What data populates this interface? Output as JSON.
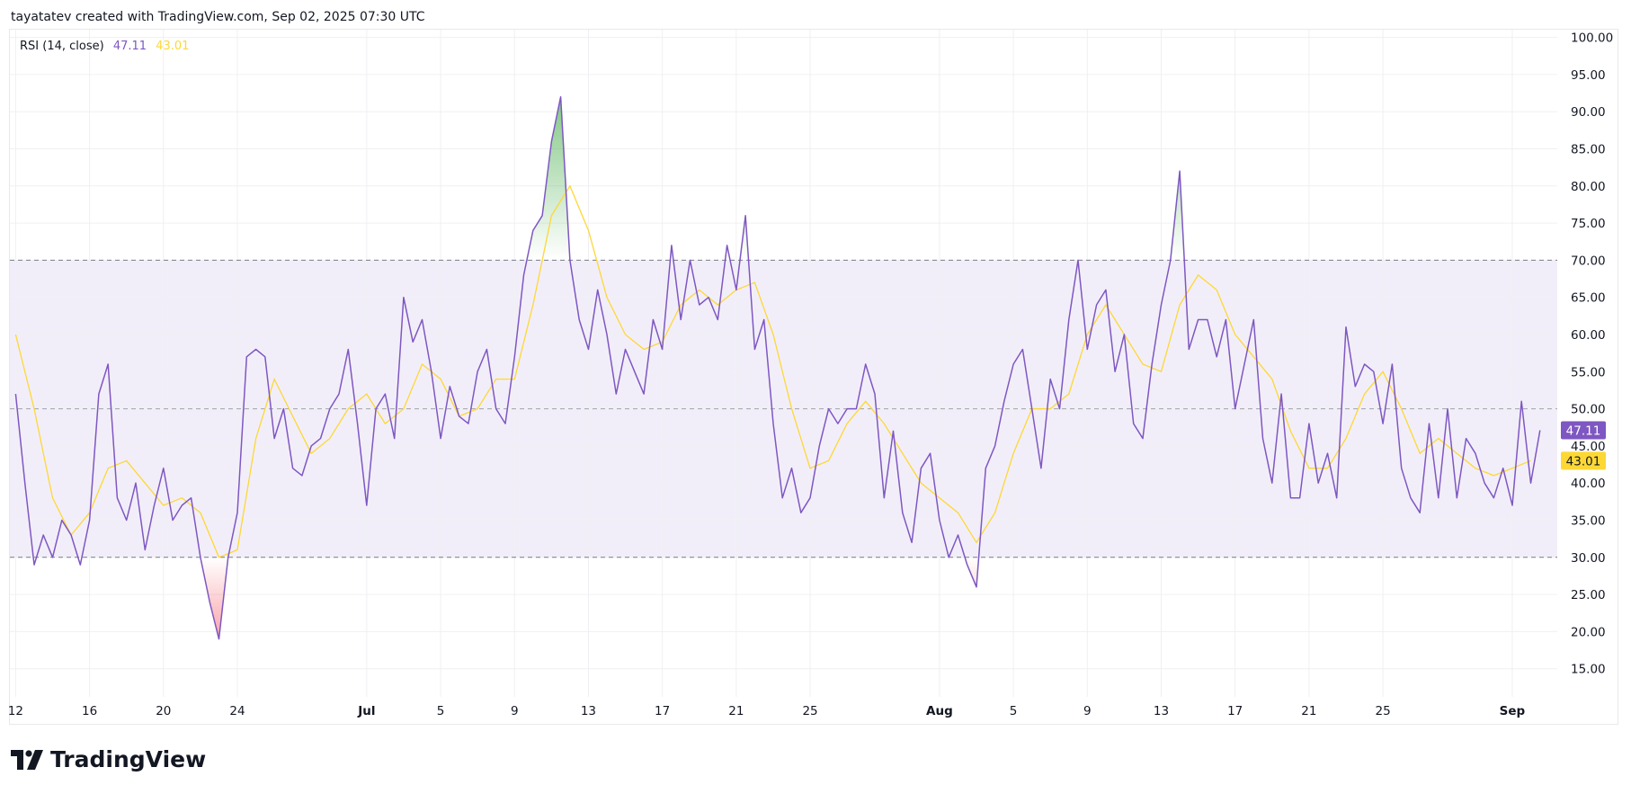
{
  "header": {
    "attribution": "tayatatev created with TradingView.com, Sep 02, 2025 07:30 UTC"
  },
  "legend": {
    "indicator": "RSI (14, close)",
    "rsi_value": "47.11",
    "ma_value": "43.01"
  },
  "logo": {
    "text": "TradingView"
  },
  "colors": {
    "rsi": "#7e57c2",
    "ma": "#fdd835",
    "band": "#7e57c2",
    "overbought_fill": "#4caf50",
    "oversold_fill": "#f23645"
  },
  "chart_data": {
    "type": "line",
    "title": "RSI (14, close)",
    "ylim": [
      10,
      100
    ],
    "y_ticks": [
      "100.00",
      "95.00",
      "90.00",
      "85.00",
      "80.00",
      "75.00",
      "70.00",
      "65.00",
      "60.00",
      "55.00",
      "50.00",
      "45.00",
      "40.00",
      "35.00",
      "30.00",
      "25.00",
      "20.00",
      "15.00"
    ],
    "x_ticks": [
      {
        "label": "12",
        "date": "2025-06-12",
        "month": false
      },
      {
        "label": "16",
        "date": "2025-06-16",
        "month": false
      },
      {
        "label": "20",
        "date": "2025-06-20",
        "month": false
      },
      {
        "label": "24",
        "date": "2025-06-24",
        "month": false
      },
      {
        "label": "Jul",
        "date": "2025-07-01",
        "month": true
      },
      {
        "label": "5",
        "date": "2025-07-05",
        "month": false
      },
      {
        "label": "9",
        "date": "2025-07-09",
        "month": false
      },
      {
        "label": "13",
        "date": "2025-07-13",
        "month": false
      },
      {
        "label": "17",
        "date": "2025-07-17",
        "month": false
      },
      {
        "label": "21",
        "date": "2025-07-21",
        "month": false
      },
      {
        "label": "25",
        "date": "2025-07-25",
        "month": false
      },
      {
        "label": "Aug",
        "date": "2025-08-01",
        "month": true
      },
      {
        "label": "5",
        "date": "2025-08-05",
        "month": false
      },
      {
        "label": "9",
        "date": "2025-08-09",
        "month": false
      },
      {
        "label": "13",
        "date": "2025-08-13",
        "month": false
      },
      {
        "label": "17",
        "date": "2025-08-17",
        "month": false
      },
      {
        "label": "21",
        "date": "2025-08-21",
        "month": false
      },
      {
        "label": "25",
        "date": "2025-08-25",
        "month": false
      },
      {
        "label": "Sep",
        "date": "2025-09-01",
        "month": true
      }
    ],
    "levels": {
      "upper": 70,
      "middle": 50,
      "lower": 30
    },
    "grid": true,
    "legend": "top-left",
    "series": [
      {
        "name": "RSI (14, close)",
        "start": "2025-06-12",
        "interval": "12h",
        "last_label": "47.11",
        "values": [
          52,
          40,
          29,
          33,
          30,
          35,
          33,
          29,
          35,
          52,
          56,
          38,
          35,
          40,
          31,
          37,
          42,
          35,
          37,
          38,
          30,
          24,
          19,
          30,
          36,
          57,
          58,
          57,
          46,
          50,
          42,
          41,
          45,
          46,
          50,
          52,
          58,
          48,
          37,
          50,
          52,
          46,
          65,
          59,
          62,
          55,
          46,
          53,
          49,
          48,
          55,
          58,
          50,
          48,
          57,
          68,
          74,
          76,
          86,
          92,
          70,
          62,
          58,
          66,
          60,
          52,
          58,
          55,
          52,
          62,
          58,
          72,
          62,
          70,
          64,
          65,
          62,
          72,
          66,
          76,
          58,
          62,
          48,
          38,
          42,
          36,
          38,
          45,
          50,
          48,
          50,
          50,
          56,
          52,
          38,
          47,
          36,
          32,
          42,
          44,
          35,
          30,
          33,
          29,
          26,
          42,
          45,
          51,
          56,
          58,
          50,
          42,
          54,
          50,
          62,
          70,
          58,
          64,
          66,
          55,
          60,
          48,
          46,
          56,
          64,
          70,
          82,
          58,
          62,
          62,
          57,
          62,
          50,
          56,
          62,
          46,
          40,
          52,
          38,
          38,
          48,
          40,
          44,
          38,
          61,
          53,
          56,
          55,
          48,
          56,
          42,
          38,
          36,
          48,
          38,
          50,
          38,
          46,
          44,
          40,
          38,
          42,
          37,
          51,
          40,
          47.11
        ]
      },
      {
        "name": "RSI-based MA",
        "start": "2025-06-12",
        "interval": "24h",
        "last_label": "43.01",
        "values": [
          60,
          50,
          38,
          33,
          36,
          42,
          43,
          40,
          37,
          38,
          36,
          30,
          31,
          46,
          54,
          49,
          44,
          46,
          50,
          52,
          48,
          50,
          56,
          54,
          49,
          50,
          54,
          54,
          64,
          76,
          80,
          74,
          65,
          60,
          58,
          59,
          64,
          66,
          64,
          66,
          67,
          60,
          50,
          42,
          43,
          48,
          51,
          48,
          44,
          40,
          38,
          36,
          32,
          36,
          44,
          50,
          50,
          52,
          60,
          64,
          60,
          56,
          55,
          64,
          68,
          66,
          60,
          57,
          54,
          47,
          42,
          42,
          46,
          52,
          55,
          50,
          44,
          46,
          44,
          42,
          41,
          42,
          43.01
        ]
      }
    ]
  }
}
